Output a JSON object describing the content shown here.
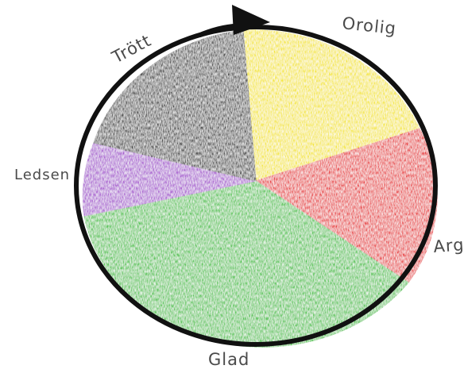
{
  "wheel": {
    "segments": [
      {
        "label": "Orolig",
        "color": "#f4e61c"
      },
      {
        "label": "Arg",
        "color": "#e8393a"
      },
      {
        "label": "Glad",
        "color": "#4ec44b"
      },
      {
        "label": "Ledsen",
        "color": "#a64fcf"
      },
      {
        "label": "Trött",
        "color": "#3a3a3a"
      }
    ],
    "outline_color": "#111111",
    "direction": "clockwise"
  }
}
